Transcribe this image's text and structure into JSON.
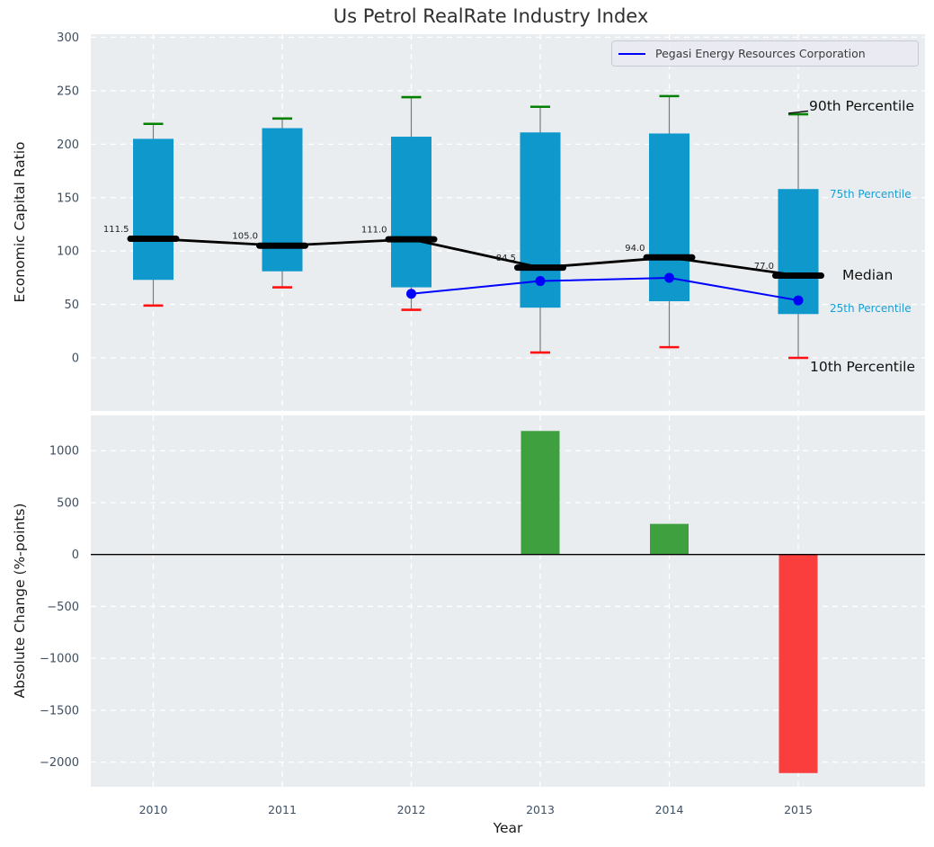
{
  "title": "Us Petrol RealRate Industry Index",
  "legend": {
    "label": "Pegasi Energy Resources Corporation"
  },
  "axis": {
    "xlabel": "Year",
    "top_ylabel": "Economic Capital Ratio",
    "bottom_ylabel": "Absolute Change (%-points)"
  },
  "annotations": {
    "p90": "90th Percentile",
    "p75": "75th Percentile",
    "median": "Median",
    "p25": "25th Percentile",
    "p10": "10th Percentile"
  },
  "colors": {
    "plot_bg": "#e9edf0",
    "grid": "#ffffff",
    "tick_label": "#3d4f63",
    "box_fill": "#0f98cb",
    "whisker": "#7a7a7a",
    "cap_top": "#008000",
    "cap_bottom": "#ff1111",
    "median_line": "#000000",
    "company_line": "#0000ff",
    "bar_positive": "#3fa03f",
    "bar_negative": "#fa3d3d",
    "zero_line": "#000000",
    "median_value_label": "#1f1f1f"
  },
  "chart_data": [
    {
      "type": "box",
      "title": "Us Petrol RealRate Industry Index",
      "xlabel": "Year",
      "ylabel": "Economic Capital Ratio",
      "categories": [
        "2010",
        "2011",
        "2012",
        "2013",
        "2014",
        "2015"
      ],
      "yticks": [
        0,
        50,
        100,
        150,
        200,
        250,
        300
      ],
      "ylim": [
        -50,
        302
      ],
      "grid": true,
      "legend_position": "upper right",
      "boxes": [
        {
          "year": "2010",
          "p10": 49,
          "p25": 73,
          "median": 111.5,
          "p75": 205,
          "p90": 219
        },
        {
          "year": "2011",
          "p10": 66,
          "p25": 81,
          "median": 105.0,
          "p75": 215,
          "p90": 224
        },
        {
          "year": "2012",
          "p10": 45,
          "p25": 66,
          "median": 111.0,
          "p75": 207,
          "p90": 244
        },
        {
          "year": "2013",
          "p10": 5,
          "p25": 47,
          "median": 84.5,
          "p75": 211,
          "p90": 235
        },
        {
          "year": "2014",
          "p10": 10,
          "p25": 53,
          "median": 94.0,
          "p75": 210,
          "p90": 245
        },
        {
          "year": "2015",
          "p10": 0,
          "p25": 41,
          "median": 77.0,
          "p75": 158,
          "p90": 228
        }
      ],
      "median_labels": [
        "111.5",
        "105.0",
        "111.0",
        "84.5",
        "94.0",
        "77.0"
      ],
      "series": [
        {
          "name": "Pegasi Energy Resources Corporation",
          "x": [
            "2012",
            "2013",
            "2014",
            "2015"
          ],
          "values": [
            60.0,
            71.9,
            74.9,
            53.8
          ]
        },
        {
          "name": "Median",
          "x": [
            "2010",
            "2011",
            "2012",
            "2013",
            "2014",
            "2015"
          ],
          "values": [
            111.5,
            105.0,
            111.0,
            84.5,
            94.0,
            77.0
          ]
        }
      ]
    },
    {
      "type": "bar",
      "xlabel": "Year",
      "ylabel": "Absolute Change (%-points)",
      "categories": [
        "2010",
        "2011",
        "2012",
        "2013",
        "2014",
        "2015"
      ],
      "values": [
        null,
        null,
        null,
        1190,
        295,
        -2105
      ],
      "yticks": [
        1000,
        500,
        0,
        -500,
        -1000,
        -1500,
        -2000
      ],
      "ytick_labels": [
        "1000",
        "500",
        "0",
        "−500",
        "−1000",
        "−1500",
        "−2000"
      ],
      "ylim": [
        -2240,
        1340
      ],
      "grid": true
    }
  ]
}
